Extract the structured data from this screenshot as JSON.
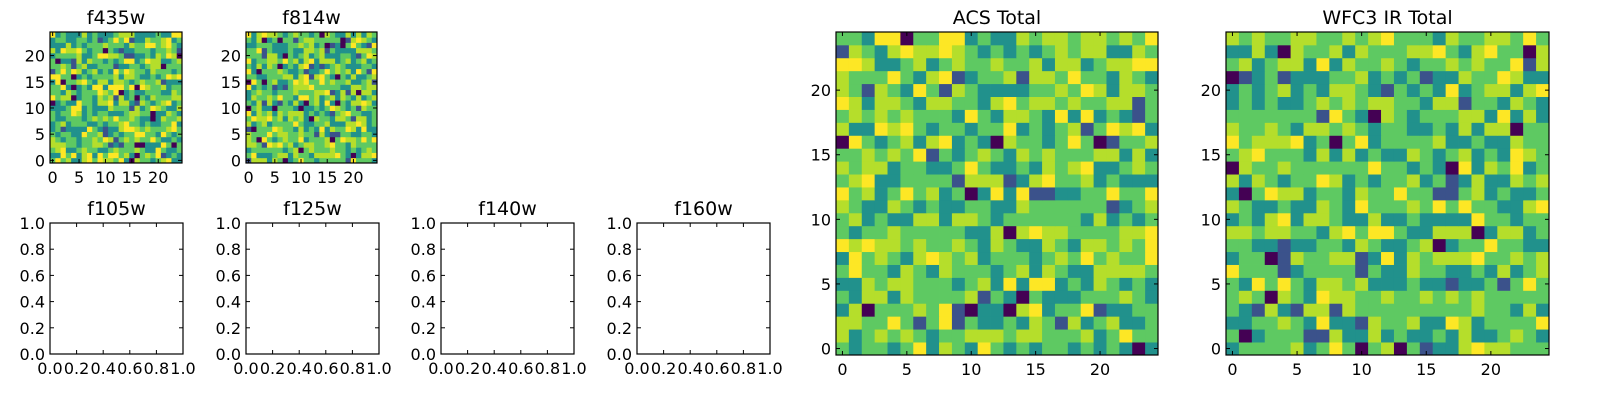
{
  "palette": [
    "#440154",
    "#3b528b",
    "#21918c",
    "#5ec962",
    "#b5de2b",
    "#fde725"
  ],
  "chart_data": [
    {
      "type": "heatmap",
      "title": "f435w",
      "x_ticks": [
        "0",
        "5",
        "10",
        "15",
        "20"
      ],
      "y_ticks": [
        "0",
        "5",
        "10",
        "15",
        "20"
      ],
      "xlim": [
        -0.5,
        24.5
      ],
      "ylim": [
        -0.5,
        24.5
      ],
      "grid_size": 25,
      "cmap": "viridis",
      "values": "randomized"
    },
    {
      "type": "heatmap",
      "title": "f814w",
      "x_ticks": [
        "0",
        "5",
        "10",
        "15",
        "20"
      ],
      "y_ticks": [
        "0",
        "5",
        "10",
        "15",
        "20"
      ],
      "xlim": [
        -0.5,
        24.5
      ],
      "ylim": [
        -0.5,
        24.5
      ],
      "grid_size": 25,
      "cmap": "viridis",
      "values": "randomized"
    },
    {
      "type": "scatter",
      "title": "f105w",
      "x_ticks": [
        "0.0",
        "0.2",
        "0.4",
        "0.6",
        "0.8",
        "1.0"
      ],
      "y_ticks": [
        "0.0",
        "0.2",
        "0.4",
        "0.6",
        "0.8",
        "1.0"
      ],
      "xlim": [
        0,
        1
      ],
      "ylim": [
        0,
        1
      ],
      "series": []
    },
    {
      "type": "scatter",
      "title": "f125w",
      "x_ticks": [
        "0.0",
        "0.2",
        "0.4",
        "0.6",
        "0.8",
        "1.0"
      ],
      "y_ticks": [
        "0.0",
        "0.2",
        "0.4",
        "0.6",
        "0.8",
        "1.0"
      ],
      "xlim": [
        0,
        1
      ],
      "ylim": [
        0,
        1
      ],
      "series": []
    },
    {
      "type": "scatter",
      "title": "f140w",
      "x_ticks": [
        "0.0",
        "0.2",
        "0.4",
        "0.6",
        "0.8",
        "1.0"
      ],
      "y_ticks": [
        "0.0",
        "0.2",
        "0.4",
        "0.6",
        "0.8",
        "1.0"
      ],
      "xlim": [
        0,
        1
      ],
      "ylim": [
        0,
        1
      ],
      "series": []
    },
    {
      "type": "scatter",
      "title": "f160w",
      "x_ticks": [
        "0.0",
        "0.2",
        "0.4",
        "0.6",
        "0.8",
        "1.0"
      ],
      "y_ticks": [
        "0.0",
        "0.2",
        "0.4",
        "0.6",
        "0.8",
        "1.0"
      ],
      "xlim": [
        0,
        1
      ],
      "ylim": [
        0,
        1
      ],
      "series": []
    },
    {
      "type": "heatmap",
      "title": "ACS Total",
      "x_ticks": [
        "0",
        "5",
        "10",
        "15",
        "20"
      ],
      "y_ticks": [
        "0",
        "5",
        "10",
        "15",
        "20"
      ],
      "xlim": [
        -0.5,
        24.5
      ],
      "ylim": [
        -0.5,
        24.5
      ],
      "grid_size": 25,
      "cmap": "viridis",
      "values": "randomized"
    },
    {
      "type": "heatmap",
      "title": "WFC3 IR Total",
      "x_ticks": [
        "0",
        "5",
        "10",
        "15",
        "20"
      ],
      "y_ticks": [
        "0",
        "5",
        "10",
        "15",
        "20"
      ],
      "xlim": [
        -0.5,
        24.5
      ],
      "ylim": [
        -0.5,
        24.5
      ],
      "grid_size": 25,
      "cmap": "viridis",
      "values": "randomized"
    }
  ]
}
